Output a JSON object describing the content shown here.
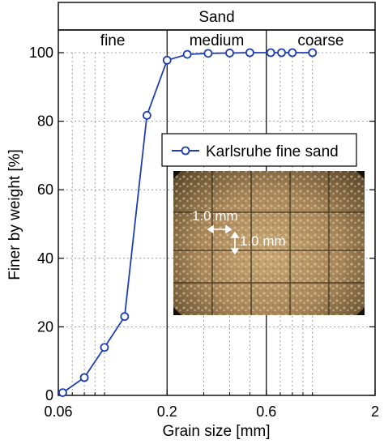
{
  "chart_data": {
    "type": "line",
    "xlabel": "Grain size [mm]",
    "ylabel": "Finer by weight [%]",
    "x_scale": "log",
    "xlim": [
      0.06,
      2
    ],
    "ylim": [
      0,
      100
    ],
    "x_ticks": [
      {
        "value": 0.06,
        "label": "0.06"
      },
      {
        "value": 0.2,
        "label": "0.2"
      },
      {
        "value": 0.6,
        "label": "0.6"
      },
      {
        "value": 2,
        "label": "2"
      }
    ],
    "y_ticks": [
      0,
      20,
      40,
      60,
      80,
      100
    ],
    "grid": true,
    "legend_position": "upper-right",
    "bands": {
      "header": "Sand",
      "items": [
        {
          "label": "fine",
          "from": 0.06,
          "to": 0.2
        },
        {
          "label": "medium",
          "from": 0.2,
          "to": 0.6
        },
        {
          "label": "coarse",
          "from": 0.6,
          "to": 2
        }
      ]
    },
    "series": [
      {
        "name": "Karlsruhe fine sand",
        "color": "#1f3fb0",
        "x": [
          0.063,
          0.08,
          0.1,
          0.125,
          0.16,
          0.2,
          0.25,
          0.315,
          0.4,
          0.5,
          0.63,
          0.71,
          0.8,
          1.0
        ],
        "y": [
          0.8,
          5.2,
          14,
          23,
          81.7,
          97.8,
          99.5,
          99.8,
          99.9,
          100,
          100,
          100,
          100,
          100
        ]
      }
    ],
    "inset": {
      "description_labels": [
        "1.0 mm",
        "1.0 mm"
      ]
    }
  }
}
